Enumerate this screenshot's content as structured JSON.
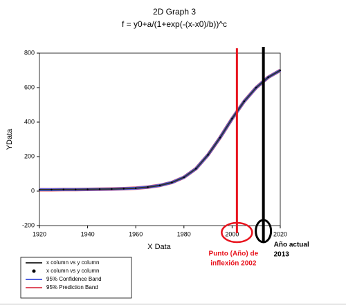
{
  "chart_data": {
    "type": "line",
    "title": "2D Graph 3",
    "subtitle": "f = y0+a/(1+exp(-(x-x0)/b))^c",
    "x_label": "X Data",
    "y_label": "YData",
    "xlim": [
      1920,
      2020
    ],
    "xticks": [
      1920,
      1940,
      1960,
      1980,
      2000,
      2020
    ],
    "ylim": [
      -200,
      800
    ],
    "yticks": [
      -200,
      0,
      200,
      400,
      600,
      800
    ],
    "x": [
      1920,
      1925,
      1930,
      1935,
      1940,
      1945,
      1950,
      1955,
      1960,
      1965,
      1970,
      1975,
      1980,
      1985,
      1990,
      1995,
      2000,
      2005,
      2010,
      2015,
      2020
    ],
    "series": [
      {
        "name": "95% Prediction Band",
        "color": "#e05060",
        "style": "line",
        "values": [
          8,
          8,
          9,
          9,
          10,
          11,
          12,
          14,
          17,
          23,
          33,
          50,
          80,
          130,
          210,
          310,
          420,
          520,
          600,
          660,
          700
        ]
      },
      {
        "name": "95% Confidence Band",
        "color": "#5060e0",
        "style": "line",
        "values": [
          8,
          8,
          9,
          9,
          10,
          11,
          12,
          14,
          17,
          23,
          33,
          50,
          80,
          130,
          210,
          310,
          420,
          520,
          600,
          660,
          700
        ]
      },
      {
        "name": "x column vs y column",
        "color": "#333333",
        "style": "line",
        "values": [
          8,
          8,
          9,
          9,
          10,
          11,
          12,
          14,
          17,
          23,
          33,
          50,
          80,
          130,
          210,
          310,
          420,
          520,
          600,
          660,
          700
        ]
      },
      {
        "name": "x column vs y column",
        "color": "#000000",
        "style": "dot",
        "values": [
          8,
          8,
          9,
          9,
          10,
          11,
          12,
          14,
          17,
          23,
          33,
          50,
          80,
          130,
          210,
          310,
          420,
          520,
          600,
          660,
          700
        ]
      }
    ],
    "legend_order": [
      2,
      3,
      1,
      0
    ],
    "annotations": [
      {
        "x": 2002,
        "color": "#e8141e",
        "text": [
          "Punto (Año) de",
          "inflexión 2002"
        ]
      },
      {
        "x": 2013,
        "color": "#000000",
        "text": [
          "Año actual",
          "2013"
        ]
      }
    ]
  }
}
